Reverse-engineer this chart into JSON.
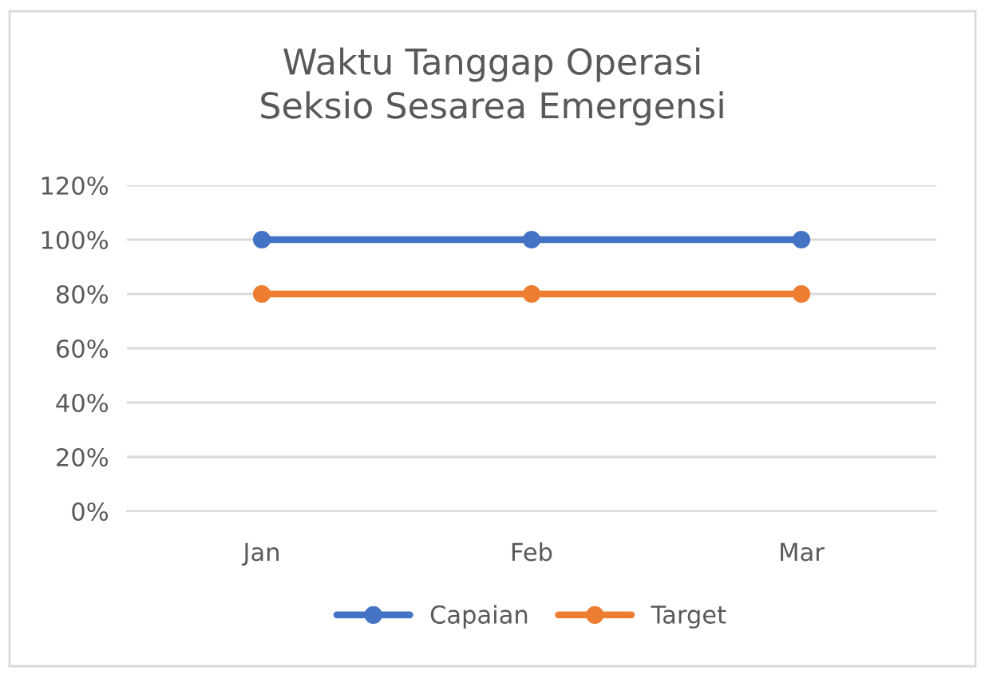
{
  "chart_data": {
    "type": "line",
    "title": "Waktu Tanggap Operasi\nSeksio Sesarea Emergensi",
    "categories": [
      "Jan",
      "Feb",
      "Mar"
    ],
    "series": [
      {
        "name": "Capaian",
        "color": "#4472c4",
        "values": [
          100,
          100,
          100
        ]
      },
      {
        "name": "Target",
        "color": "#ed7d31",
        "values": [
          80,
          80,
          80
        ]
      }
    ],
    "ylim": [
      0,
      120
    ],
    "yticks": [
      {
        "value": 0,
        "label": "0%"
      },
      {
        "value": 20,
        "label": "20%"
      },
      {
        "value": 40,
        "label": "40%"
      },
      {
        "value": 60,
        "label": "60%"
      },
      {
        "value": 80,
        "label": "80%"
      },
      {
        "value": 100,
        "label": "100%"
      },
      {
        "value": 120,
        "label": "120%"
      }
    ],
    "grid": "y",
    "legend": "bottom",
    "marker": "circle",
    "line_style": "solid"
  }
}
